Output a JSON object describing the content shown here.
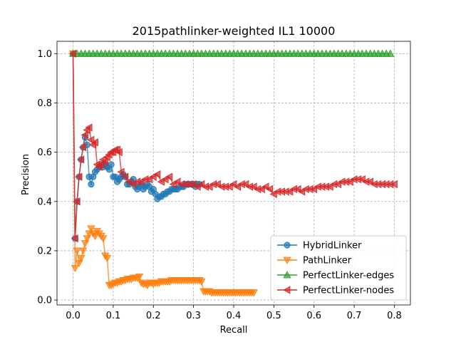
{
  "chart_data": {
    "type": "line",
    "title": "2015pathlinker-weighted IL1 10000",
    "xlabel": "Recall",
    "ylabel": "Precision",
    "xlim": [
      -0.04,
      0.84
    ],
    "ylim": [
      -0.02,
      1.05
    ],
    "xticks": [
      "0.0",
      "0.1",
      "0.2",
      "0.3",
      "0.4",
      "0.5",
      "0.6",
      "0.7",
      "0.8"
    ],
    "xtick_values": [
      0.0,
      0.1,
      0.2,
      0.3,
      0.4,
      0.5,
      0.6,
      0.7,
      0.8
    ],
    "yticks": [
      "0.0",
      "0.2",
      "0.4",
      "0.6",
      "0.8",
      "1.0"
    ],
    "ytick_values": [
      0.0,
      0.2,
      0.4,
      0.6,
      0.8,
      1.0
    ],
    "grid": true,
    "grid_style": "dashed",
    "legend_position": "lower-right",
    "series": [
      {
        "name": "HybridLinker",
        "color": "#1f77b4",
        "marker": "circle",
        "x": [
          0.0,
          0.005,
          0.01,
          0.015,
          0.02,
          0.025,
          0.03,
          0.035,
          0.04,
          0.045,
          0.05,
          0.055,
          0.06,
          0.065,
          0.07,
          0.075,
          0.08,
          0.085,
          0.09,
          0.095,
          0.1,
          0.105,
          0.11,
          0.115,
          0.12,
          0.125,
          0.13,
          0.135,
          0.14,
          0.145,
          0.15,
          0.155,
          0.16,
          0.165,
          0.17,
          0.175,
          0.18,
          0.185,
          0.19,
          0.195,
          0.2,
          0.205,
          0.21,
          0.215,
          0.22,
          0.225,
          0.23,
          0.235,
          0.24,
          0.245,
          0.25,
          0.255,
          0.26,
          0.265,
          0.27,
          0.275,
          0.28,
          0.285,
          0.29,
          0.295,
          0.3,
          0.305,
          0.31,
          0.315
        ],
        "y": [
          1.0,
          0.25,
          0.4,
          0.5,
          0.57,
          0.62,
          0.66,
          0.63,
          0.5,
          0.47,
          0.5,
          0.52,
          0.53,
          0.54,
          0.55,
          0.54,
          0.55,
          0.54,
          0.53,
          0.55,
          0.5,
          0.5,
          0.48,
          0.49,
          0.5,
          0.51,
          0.5,
          0.47,
          0.47,
          0.48,
          0.49,
          0.46,
          0.45,
          0.46,
          0.47,
          0.45,
          0.46,
          0.47,
          0.46,
          0.44,
          0.45,
          0.43,
          0.41,
          0.42,
          0.42,
          0.43,
          0.43,
          0.44,
          0.44,
          0.45,
          0.45,
          0.45,
          0.45,
          0.46,
          0.46,
          0.46,
          0.47,
          0.47,
          0.47,
          0.47,
          0.47,
          0.46,
          0.47,
          0.47
        ]
      },
      {
        "name": "PathLinker",
        "color": "#ff7f0e",
        "marker": "triangle-down",
        "x": [
          0.0,
          0.005,
          0.01,
          0.015,
          0.02,
          0.025,
          0.03,
          0.035,
          0.04,
          0.045,
          0.05,
          0.055,
          0.06,
          0.065,
          0.07,
          0.075,
          0.08,
          0.085,
          0.09,
          0.095,
          0.1,
          0.105,
          0.11,
          0.115,
          0.12,
          0.125,
          0.13,
          0.135,
          0.14,
          0.145,
          0.15,
          0.155,
          0.16,
          0.165,
          0.17,
          0.175,
          0.18,
          0.185,
          0.19,
          0.195,
          0.2,
          0.205,
          0.21,
          0.215,
          0.22,
          0.225,
          0.23,
          0.235,
          0.24,
          0.245,
          0.25,
          0.255,
          0.26,
          0.265,
          0.27,
          0.275,
          0.28,
          0.285,
          0.29,
          0.295,
          0.3,
          0.305,
          0.31,
          0.315,
          0.32,
          0.325,
          0.33,
          0.335,
          0.34,
          0.345,
          0.35,
          0.355,
          0.36,
          0.365,
          0.37,
          0.375,
          0.38,
          0.385,
          0.39,
          0.395,
          0.4,
          0.405,
          0.41,
          0.415,
          0.42,
          0.425,
          0.43,
          0.435,
          0.44,
          0.445,
          0.45
        ],
        "y": [
          1.0,
          0.13,
          0.2,
          0.15,
          0.17,
          0.2,
          0.23,
          0.25,
          0.27,
          0.29,
          0.27,
          0.26,
          0.28,
          0.27,
          0.26,
          0.25,
          0.18,
          0.17,
          0.06,
          0.06,
          0.065,
          0.07,
          0.07,
          0.075,
          0.075,
          0.08,
          0.08,
          0.085,
          0.085,
          0.085,
          0.09,
          0.09,
          0.09,
          0.095,
          0.07,
          0.065,
          0.065,
          0.06,
          0.07,
          0.07,
          0.065,
          0.07,
          0.07,
          0.07,
          0.075,
          0.075,
          0.075,
          0.075,
          0.075,
          0.08,
          0.08,
          0.08,
          0.08,
          0.08,
          0.08,
          0.08,
          0.08,
          0.08,
          0.08,
          0.08,
          0.08,
          0.08,
          0.08,
          0.08,
          0.075,
          0.035,
          0.035,
          0.035,
          0.035,
          0.03,
          0.03,
          0.03,
          0.03,
          0.03,
          0.03,
          0.03,
          0.03,
          0.03,
          0.03,
          0.03,
          0.03,
          0.03,
          0.03,
          0.03,
          0.03,
          0.03,
          0.03,
          0.03,
          0.03,
          0.03,
          0.03
        ]
      },
      {
        "name": "PerfectLinker-edges",
        "color": "#2ca02c",
        "marker": "triangle-up",
        "x": [
          0.0,
          0.79
        ],
        "y": [
          1.0,
          1.0
        ],
        "x_step": 0.01
      },
      {
        "name": "PerfectLinker-nodes",
        "color": "#d62728",
        "marker": "triangle-left",
        "x": [
          0.0,
          0.005,
          0.01,
          0.015,
          0.02,
          0.025,
          0.03,
          0.035,
          0.04,
          0.045,
          0.05,
          0.055,
          0.06,
          0.065,
          0.07,
          0.075,
          0.08,
          0.085,
          0.09,
          0.095,
          0.1,
          0.105,
          0.11,
          0.115,
          0.12,
          0.13,
          0.14,
          0.15,
          0.16,
          0.17,
          0.18,
          0.19,
          0.2,
          0.21,
          0.22,
          0.23,
          0.24,
          0.25,
          0.26,
          0.27,
          0.28,
          0.29,
          0.3,
          0.31,
          0.32,
          0.33,
          0.34,
          0.35,
          0.36,
          0.37,
          0.38,
          0.39,
          0.4,
          0.41,
          0.42,
          0.43,
          0.44,
          0.45,
          0.46,
          0.47,
          0.48,
          0.49,
          0.5,
          0.51,
          0.52,
          0.53,
          0.54,
          0.55,
          0.56,
          0.57,
          0.58,
          0.59,
          0.6,
          0.61,
          0.62,
          0.63,
          0.64,
          0.65,
          0.66,
          0.67,
          0.68,
          0.69,
          0.7,
          0.71,
          0.72,
          0.73,
          0.74,
          0.75,
          0.76,
          0.77,
          0.78,
          0.79,
          0.8
        ],
        "y": [
          1.0,
          0.25,
          0.4,
          0.5,
          0.57,
          0.62,
          0.67,
          0.69,
          0.7,
          0.65,
          0.63,
          0.64,
          0.55,
          0.54,
          0.55,
          0.57,
          0.56,
          0.58,
          0.59,
          0.6,
          0.6,
          0.61,
          0.61,
          0.6,
          0.52,
          0.5,
          0.48,
          0.47,
          0.48,
          0.48,
          0.49,
          0.49,
          0.5,
          0.51,
          0.48,
          0.49,
          0.5,
          0.47,
          0.48,
          0.47,
          0.47,
          0.47,
          0.47,
          0.46,
          0.47,
          0.46,
          0.46,
          0.47,
          0.47,
          0.46,
          0.46,
          0.46,
          0.47,
          0.46,
          0.47,
          0.47,
          0.46,
          0.46,
          0.45,
          0.45,
          0.46,
          0.45,
          0.43,
          0.44,
          0.44,
          0.44,
          0.44,
          0.45,
          0.45,
          0.44,
          0.45,
          0.45,
          0.45,
          0.46,
          0.46,
          0.46,
          0.46,
          0.47,
          0.47,
          0.48,
          0.48,
          0.48,
          0.49,
          0.49,
          0.49,
          0.48,
          0.48,
          0.47,
          0.47,
          0.47,
          0.47,
          0.47,
          0.47
        ]
      }
    ]
  }
}
